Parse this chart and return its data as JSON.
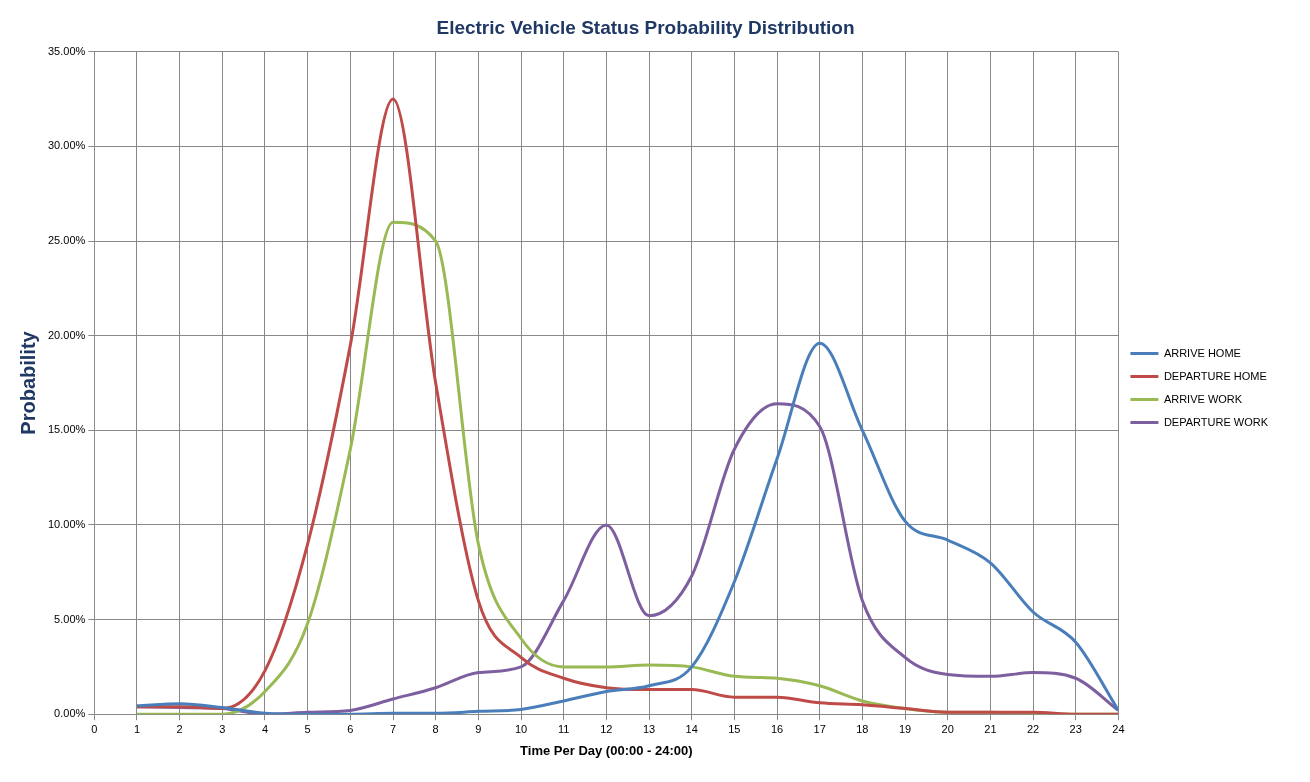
{
  "chart_data": {
    "type": "line",
    "title": "Electric Vehicle Status Probability Distribution",
    "xlabel": "Time Per Day (00:00 - 24:00)",
    "ylabel": "Probability",
    "x": [
      1,
      2,
      3,
      4,
      5,
      6,
      7,
      8,
      9,
      10,
      11,
      12,
      13,
      14,
      15,
      16,
      17,
      18,
      19,
      20,
      21,
      22,
      23,
      24
    ],
    "xlim": [
      0,
      24
    ],
    "xticks": [
      0,
      1,
      2,
      3,
      4,
      5,
      6,
      7,
      8,
      9,
      10,
      11,
      12,
      13,
      14,
      15,
      16,
      17,
      18,
      19,
      20,
      21,
      22,
      23,
      24
    ],
    "ylim": [
      0,
      35
    ],
    "yticks": [
      {
        "value": 0,
        "label": "0.00%"
      },
      {
        "value": 5,
        "label": "5.00%"
      },
      {
        "value": 10,
        "label": "10.00%"
      },
      {
        "value": 15,
        "label": "15.00%"
      },
      {
        "value": 20,
        "label": "20.00%"
      },
      {
        "value": 25,
        "label": "25.00%"
      },
      {
        "value": 30,
        "label": "30.00%"
      },
      {
        "value": 35,
        "label": "35.00%"
      }
    ],
    "grid": true,
    "legend": "right",
    "marker": "none",
    "line_style": "solid",
    "series": [
      {
        "name": "ARRIVE HOME",
        "color": "#4a7ebb",
        "values": [
          0.45,
          0.55,
          0.35,
          0.05,
          0,
          0,
          0.05,
          0.05,
          0.15,
          0.25,
          0.7,
          1.2,
          1.5,
          2.5,
          7.0,
          13.5,
          19.6,
          15.0,
          10.2,
          9.2,
          8.0,
          5.4,
          3.8,
          0.2
        ]
      },
      {
        "name": "DEPARTURE HOME",
        "color": "#be4b48",
        "values": [
          0.4,
          0.4,
          0.3,
          2.3,
          9.0,
          19.5,
          32.5,
          17.5,
          6.0,
          3.0,
          1.9,
          1.4,
          1.3,
          1.3,
          0.9,
          0.9,
          0.6,
          0.5,
          0.3,
          0.1,
          0.1,
          0.1,
          0,
          0
        ]
      },
      {
        "name": "ARRIVE WORK",
        "color": "#98b954",
        "values": [
          0,
          0,
          0,
          1.2,
          4.8,
          14.0,
          26.0,
          25.0,
          9.0,
          4.0,
          2.5,
          2.5,
          2.6,
          2.5,
          2.0,
          1.9,
          1.5,
          0.7,
          0.3,
          0.1,
          0.1,
          0.05,
          0,
          0
        ]
      },
      {
        "name": "DEPARTURE WORK",
        "color": "#7d5fa0",
        "values": [
          0.4,
          0.35,
          0.3,
          0,
          0.1,
          0.2,
          0.8,
          1.4,
          2.2,
          2.5,
          6.0,
          10.0,
          5.2,
          7.3,
          14.0,
          16.4,
          15.2,
          6.0,
          3.0,
          2.1,
          2.0,
          2.2,
          1.9,
          0.2
        ]
      }
    ]
  }
}
